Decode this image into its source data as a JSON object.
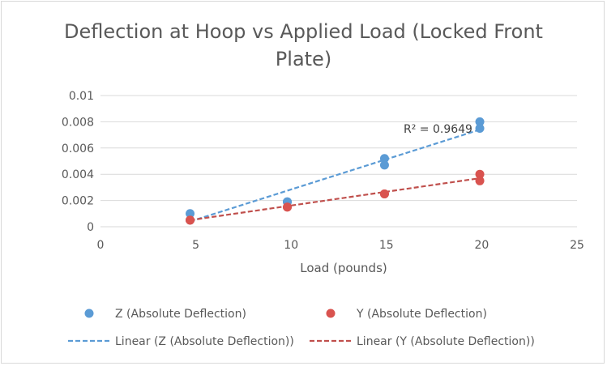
{
  "chart_data": {
    "type": "scatter",
    "title_line1": "Deflection at Hoop vs Applied Load (Locked Front",
    "title_line2": "Plate)",
    "xlabel": "Load (pounds)",
    "ylabel": "",
    "xlim": [
      0,
      25
    ],
    "ylim": [
      0,
      0.01
    ],
    "xticks": [
      "0",
      "5",
      "10",
      "15",
      "20",
      "25"
    ],
    "xtick_values": [
      0,
      5,
      10,
      15,
      20,
      25
    ],
    "yticks": [
      "0",
      "0.002",
      "0.004",
      "0.006",
      "0.008",
      "0.01"
    ],
    "ytick_values": [
      0,
      0.002,
      0.004,
      0.006,
      0.008,
      0.01
    ],
    "grid": "horizontal",
    "legend_position": "bottom",
    "annotation": "R² = 0.9649",
    "series": [
      {
        "name": "Z (Absolute Deflection)",
        "color": "#5b9bd5",
        "x": [
          4.7,
          4.7,
          9.8,
          9.8,
          14.9,
          14.9,
          19.9,
          19.9
        ],
        "y": [
          0.001,
          0.0005,
          0.0019,
          0.0019,
          0.0052,
          0.0047,
          0.008,
          0.0075
        ]
      },
      {
        "name": "Y (Absolute Deflection)",
        "color": "#d9534f",
        "x": [
          4.7,
          4.7,
          9.8,
          9.8,
          14.9,
          14.9,
          19.9,
          19.9
        ],
        "y": [
          0.0005,
          0.0005,
          0.0015,
          0.0015,
          0.0025,
          0.0025,
          0.004,
          0.0035
        ]
      }
    ],
    "trendlines": [
      {
        "name": "Linear (Z (Absolute Deflection))",
        "color": "#5b9bd5",
        "x": [
          4.7,
          19.9
        ],
        "y": [
          0.0004,
          0.0074
        ]
      },
      {
        "name": "Linear (Y (Absolute Deflection))",
        "color": "#c0504d",
        "x": [
          4.7,
          19.9
        ],
        "y": [
          0.0005,
          0.0037
        ]
      }
    ]
  }
}
